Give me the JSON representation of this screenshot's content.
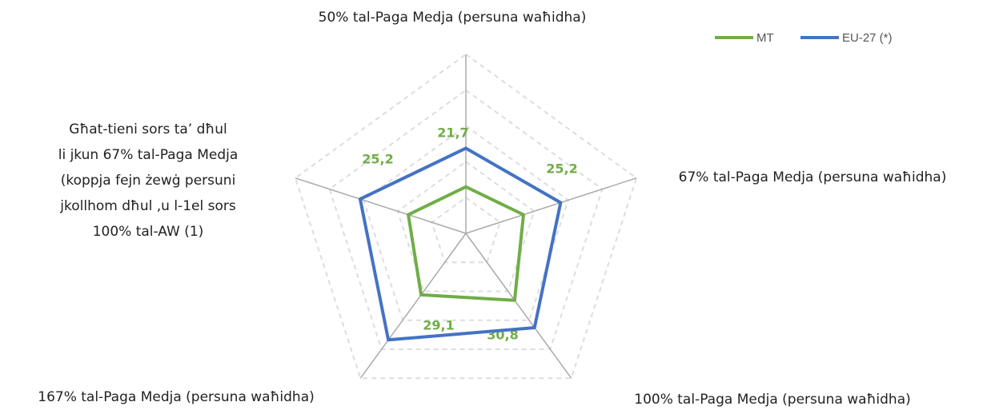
{
  "chart_data": {
    "type": "radar",
    "categories": [
      "50% tal-Paga Medja (persuna waħidha)",
      "67% tal-Paga Medja (persuna waħidha)",
      "100% tal-Paga Medja (persuna waħidha)",
      "167% tal-Paga Medja (persuna waħidha)",
      "Għat-tieni sors ta’ dħul\nli jkun 67% tal-Paga Medja\n(koppja fejn żewġ persuni\njkollhom dħul ,u l-1el sors\n100% tal-AW (1)"
    ],
    "series": [
      {
        "name": "MT",
        "color": "#70ad47",
        "values": [
          21.7,
          25.2,
          30.8,
          29.1,
          25.2
        ],
        "value_labels": [
          "21,7",
          "25,2",
          "30,8",
          "29,1",
          "25,2"
        ]
      },
      {
        "name": "EU-27 (*)",
        "color": "#4472c4",
        "values": [
          31.4,
          35.0,
          39.3,
          43.1,
          37.9
        ]
      }
    ],
    "rlim": [
      10,
      55
    ],
    "rticks": [
      19,
      28,
      37,
      46,
      55
    ],
    "grid": true,
    "legend": "top-right"
  }
}
